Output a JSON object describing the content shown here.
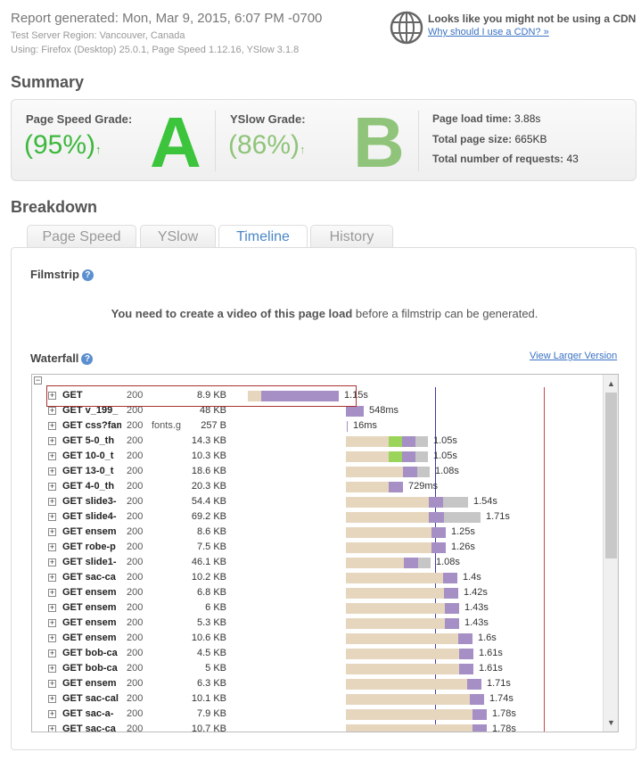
{
  "header": {
    "report_generated": "Report generated: Mon, Mar 9, 2015, 6:07 PM -0700",
    "server_region": "Test Server Region: Vancouver, Canada",
    "using": "Using: Firefox (Desktop) 25.0.1, Page Speed 1.12.16, YSlow 3.1.8"
  },
  "cdn": {
    "notice": "Looks like you might not be using a CDN",
    "link": "Why should I use a CDN? »"
  },
  "summary": {
    "title": "Summary",
    "pagespeed_label": "Page Speed Grade:",
    "pagespeed_pct": "(95%)",
    "pagespeed_grade": "A",
    "yslow_label": "YSlow Grade:",
    "yslow_pct": "(86%)",
    "yslow_grade": "B",
    "arrow": "↑",
    "load_time_label": "Page load time:",
    "load_time": "3.88s",
    "page_size_label": "Total page size:",
    "page_size": "665KB",
    "requests_label": "Total number of requests:",
    "requests": "43",
    "colors": {
      "grade_a": "#3cc43c",
      "grade_b": "#8fc47a",
      "pct_a": "#3cb83c",
      "pct_b": "#8fc47a"
    }
  },
  "breakdown": {
    "title": "Breakdown",
    "tabs": [
      "Page Speed",
      "YSlow",
      "Timeline",
      "History"
    ],
    "active_tab": "Timeline"
  },
  "filmstrip": {
    "title": "Filmstrip",
    "message_bold": "You need to create a video of this page load",
    "message_rest": " before a filmstrip can be generated."
  },
  "waterfall": {
    "title": "Waterfall",
    "view_larger": "View Larger Version",
    "rows": [
      {
        "url": "GET",
        "status": "200",
        "domain": "",
        "size": "8.9 KB",
        "duration": "1.15s"
      },
      {
        "url": "GET v_199_",
        "status": "200",
        "domain": "",
        "size": "48 KB",
        "duration": "548ms"
      },
      {
        "url": "GET css?fami",
        "status": "200",
        "domain": "fonts.g",
        "size": "257 B",
        "duration": "16ms"
      },
      {
        "url": "GET 5-0_th",
        "status": "200",
        "domain": "",
        "size": "14.3 KB",
        "duration": "1.05s"
      },
      {
        "url": "GET 10-0_t",
        "status": "200",
        "domain": "",
        "size": "10.3 KB",
        "duration": "1.05s"
      },
      {
        "url": "GET 13-0_t",
        "status": "200",
        "domain": "",
        "size": "18.6 KB",
        "duration": "1.08s"
      },
      {
        "url": "GET 4-0_th",
        "status": "200",
        "domain": "",
        "size": "20.3 KB",
        "duration": "729ms"
      },
      {
        "url": "GET slide3-",
        "status": "200",
        "domain": "",
        "size": "54.4 KB",
        "duration": "1.54s"
      },
      {
        "url": "GET slide4-",
        "status": "200",
        "domain": "",
        "size": "69.2 KB",
        "duration": "1.71s"
      },
      {
        "url": "GET ensem",
        "status": "200",
        "domain": "",
        "size": "8.6 KB",
        "duration": "1.25s"
      },
      {
        "url": "GET robe-p",
        "status": "200",
        "domain": "",
        "size": "7.5 KB",
        "duration": "1.26s"
      },
      {
        "url": "GET slide1-",
        "status": "200",
        "domain": "",
        "size": "46.1 KB",
        "duration": "1.08s"
      },
      {
        "url": "GET sac-ca",
        "status": "200",
        "domain": "",
        "size": "10.2 KB",
        "duration": "1.4s"
      },
      {
        "url": "GET ensem",
        "status": "200",
        "domain": "",
        "size": "6.8 KB",
        "duration": "1.42s"
      },
      {
        "url": "GET ensem",
        "status": "200",
        "domain": "",
        "size": "6 KB",
        "duration": "1.43s"
      },
      {
        "url": "GET ensem",
        "status": "200",
        "domain": "",
        "size": "5.3 KB",
        "duration": "1.43s"
      },
      {
        "url": "GET ensem",
        "status": "200",
        "domain": "",
        "size": "10.6 KB",
        "duration": "1.6s"
      },
      {
        "url": "GET bob-ca",
        "status": "200",
        "domain": "",
        "size": "4.5 KB",
        "duration": "1.61s"
      },
      {
        "url": "GET bob-ca",
        "status": "200",
        "domain": "",
        "size": "5 KB",
        "duration": "1.61s"
      },
      {
        "url": "GET ensem",
        "status": "200",
        "domain": "",
        "size": "6.3 KB",
        "duration": "1.71s"
      },
      {
        "url": "GET sac-cal",
        "status": "200",
        "domain": "",
        "size": "10.1 KB",
        "duration": "1.74s"
      },
      {
        "url": "GET sac-a-",
        "status": "200",
        "domain": "",
        "size": "7.9 KB",
        "duration": "1.78s"
      },
      {
        "url": "GET sac-ca",
        "status": "200",
        "domain": "",
        "size": "10.7 KB",
        "duration": "1.78s"
      }
    ],
    "colors": {
      "wait": "#e6d6be",
      "receive": "#a58fc4",
      "blocked": "#c6c6c6",
      "dns": "#9bd45a"
    }
  }
}
